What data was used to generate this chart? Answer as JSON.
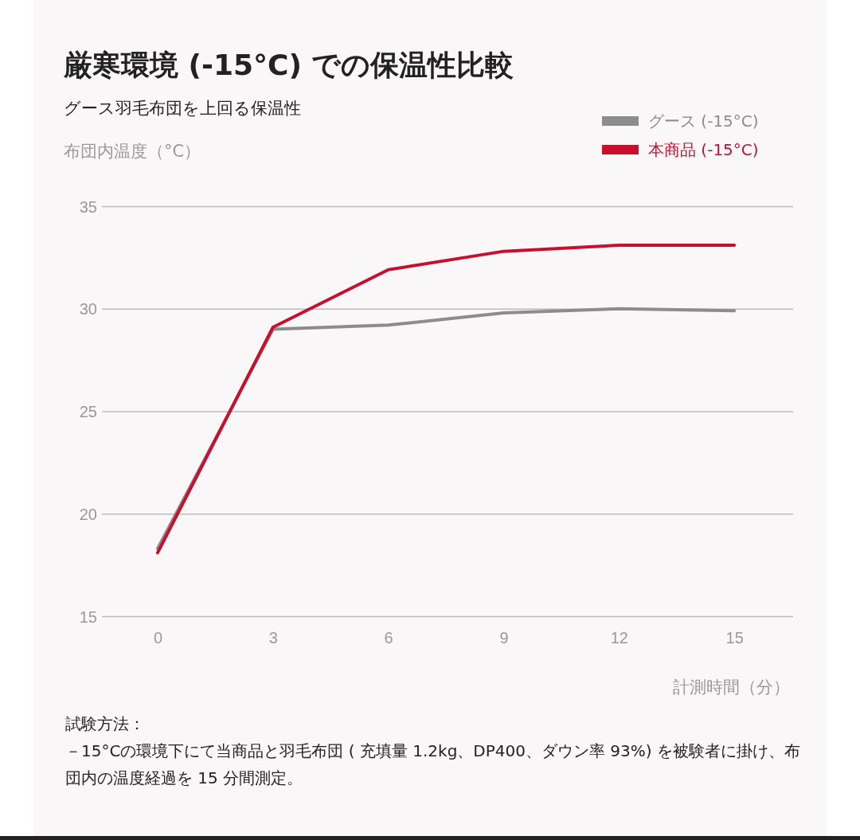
{
  "chart_data": {
    "type": "line",
    "title": "厳寒環境 (-15°C) での保温性比較",
    "subtitle": "グース羽毛布団を上回る保温性",
    "ylabel": "布団内温度（°C）",
    "xlabel": "計測時間（分）",
    "x": [
      0,
      3,
      6,
      9,
      12,
      15
    ],
    "xlim": [
      -1.45,
      16.53
    ],
    "xticks": [
      0,
      3,
      6,
      9,
      12,
      15
    ],
    "ylim": [
      15,
      35
    ],
    "yticks": [
      15,
      20,
      25,
      30,
      35
    ],
    "grid": "y",
    "legend": "top right",
    "marker": "none",
    "line_style": "solid",
    "series": [
      {
        "name": "グース (-15°C)",
        "color": "#8c8c8c",
        "values": [
          18.3,
          29.0,
          29.2,
          29.8,
          30.0,
          29.9
        ]
      },
      {
        "name": "本商品 (-15°C)",
        "color": "#c8102e",
        "values": [
          18.1,
          29.1,
          31.9,
          32.8,
          33.1,
          33.1
        ]
      }
    ],
    "annotations": [
      "試験方法：",
      "－15°Cの環境下にて当商品と羽毛布団 ( 充填量 1.2kg、DP400、ダウン率 93%) を被験者に掛け、布団内の温度経過を 15 分間測定。"
    ]
  }
}
